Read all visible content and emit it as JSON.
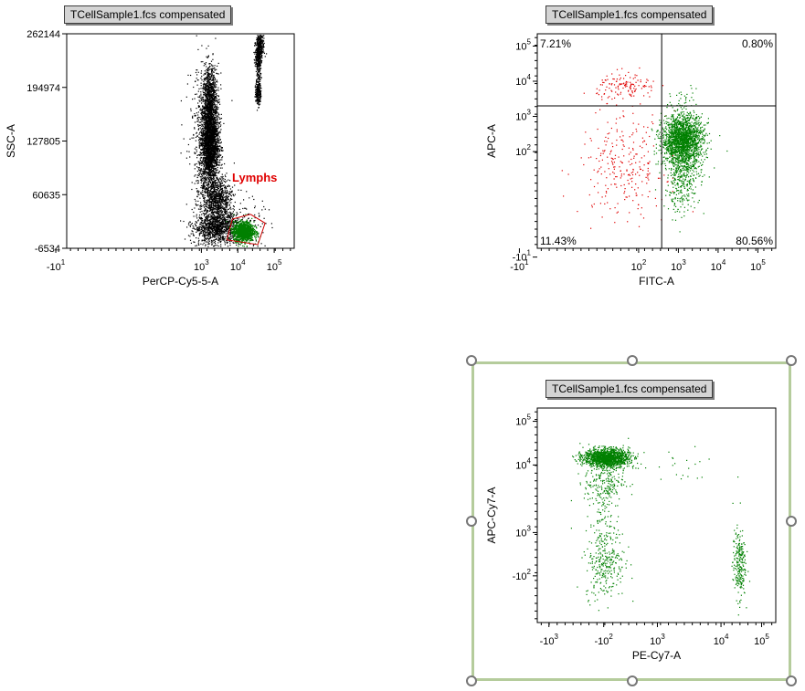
{
  "colors": {
    "axis": "#000000",
    "black_events": "#000000",
    "gated_events": "#008000",
    "gate": "#cc0000",
    "red_events": "#e00000",
    "selection": "#b5cc9c"
  },
  "chart_data": [
    {
      "id": "plot1",
      "type": "scatter",
      "title": "TCellSample1.fcs compensated",
      "xlabel": "PerCP-Cy5-5-A",
      "ylabel": "SSC-A",
      "xscale": "biex",
      "xlim": [
        -0.7,
        5.55
      ],
      "xticks": [
        {
          "pos": -1,
          "label": "-10",
          "exp": "1"
        },
        {
          "pos": 3,
          "label": "10",
          "exp": "3"
        },
        {
          "pos": 4,
          "label": "10",
          "exp": "4"
        },
        {
          "pos": 5,
          "label": "10",
          "exp": "5"
        }
      ],
      "ylim": [
        -6534,
        262144
      ],
      "yticks": [
        {
          "pos": 262144,
          "label": "262144"
        },
        {
          "pos": 194974,
          "label": "194974"
        },
        {
          "pos": 127805,
          "label": "127805"
        },
        {
          "pos": 60635,
          "label": "60635"
        },
        {
          "pos": -6534,
          "label": "-6534"
        }
      ],
      "gate": {
        "name": "Lymphs",
        "polygon": [
          [
            3.7,
            4000
          ],
          [
            4.55,
            -2000
          ],
          [
            4.75,
            25000
          ],
          [
            4.35,
            36000
          ],
          [
            3.85,
            30000
          ]
        ]
      },
      "populations": [
        {
          "color": "black",
          "n": 2600,
          "cx": 3.22,
          "cy": 128000,
          "sx": 0.12,
          "sy": 28000
        },
        {
          "color": "black",
          "n": 600,
          "cx": 3.22,
          "cy": 188000,
          "sx": 0.1,
          "sy": 18000
        },
        {
          "color": "black",
          "n": 700,
          "cx": 3.45,
          "cy": 55000,
          "sx": 0.18,
          "sy": 13000
        },
        {
          "color": "black",
          "n": 900,
          "cx": 3.4,
          "cy": 20000,
          "sx": 0.3,
          "sy": 9000
        },
        {
          "color": "black",
          "n": 700,
          "cx": 3.1,
          "cy": 95000,
          "sx": 0.22,
          "sy": 70000
        },
        {
          "color": "black",
          "n": 250,
          "cx": 3.9,
          "cy": 20000,
          "sx": 0.4,
          "sy": 20000
        },
        {
          "color": "black",
          "n": 450,
          "cx": 4.55,
          "cy": 235000,
          "sx": 0.04,
          "sy": 12000
        },
        {
          "color": "black",
          "n": 250,
          "cx": 4.55,
          "cy": 190000,
          "sx": 0.035,
          "sy": 9000
        },
        {
          "color": "black",
          "n": 200,
          "cx": 4.62,
          "cy": 250000,
          "sx": 0.05,
          "sy": 9000
        },
        {
          "color": "green",
          "n": 1300,
          "cx": 4.15,
          "cy": 15000,
          "sx": 0.14,
          "sy": 6000
        }
      ],
      "labels": [
        {
          "text": "Lymphs",
          "color": "#e00000"
        }
      ]
    },
    {
      "id": "plot2",
      "type": "scatter",
      "title": "TCellSample1.fcs compensated",
      "xlabel": "FITC-A",
      "ylabel": "APC-A",
      "xscale": "biex",
      "xlim": [
        -0.55,
        5.45
      ],
      "xticks": [
        {
          "pos": -1,
          "label": "-10",
          "exp": "1"
        },
        {
          "pos": 2,
          "label": "10",
          "exp": "2"
        },
        {
          "pos": 3,
          "label": "10",
          "exp": "3"
        },
        {
          "pos": 4,
          "label": "10",
          "exp": "4"
        },
        {
          "pos": 5,
          "label": "10",
          "exp": "5"
        }
      ],
      "yscale": "biex",
      "ylim": [
        -0.75,
        5.35
      ],
      "yticks": [
        {
          "pos": -1,
          "label": "-10",
          "exp": "1"
        },
        {
          "pos": 2,
          "label": "10",
          "exp": "2"
        },
        {
          "pos": 3,
          "label": "10",
          "exp": "3"
        },
        {
          "pos": 4,
          "label": "10",
          "exp": "4"
        },
        {
          "pos": 5,
          "label": "10",
          "exp": "5"
        }
      ],
      "quadrant_divider": {
        "x": 2.58,
        "y": 3.3
      },
      "quadrants": [
        {
          "name": "UL",
          "percent": "7.21%"
        },
        {
          "name": "UR",
          "percent": "0.80%"
        },
        {
          "name": "LL",
          "percent": "11.43%"
        },
        {
          "name": "LR",
          "percent": "80.56%"
        }
      ],
      "populations": [
        {
          "color": "red",
          "n": 130,
          "cx": 1.7,
          "cy": 3.85,
          "sx": 0.38,
          "sy": 0.2
        },
        {
          "color": "red",
          "n": 260,
          "cx": 1.6,
          "cy": 1.6,
          "sx": 0.55,
          "sy": 0.75
        },
        {
          "color": "green",
          "n": 1700,
          "cx": 3.1,
          "cy": 2.35,
          "sx": 0.26,
          "sy": 0.35
        },
        {
          "color": "green",
          "n": 500,
          "cx": 3.1,
          "cy": 1.5,
          "sx": 0.22,
          "sy": 0.6
        },
        {
          "color": "green",
          "n": 25,
          "cx": 3.05,
          "cy": 3.55,
          "sx": 0.2,
          "sy": 0.15
        }
      ]
    },
    {
      "id": "plot3",
      "type": "scatter",
      "title": "TCellSample1.fcs compensated",
      "xlabel": "PE-Cy7-A",
      "ylabel": "APC-Cy7-A",
      "xscale": "biex",
      "xlim": [
        -1.4,
        5.35
      ],
      "xticks": [
        {
          "pos": -1.07,
          "label": "-10",
          "exp": "3"
        },
        {
          "pos": 0.48,
          "label": "-10",
          "exp": "2"
        },
        {
          "pos": 2,
          "label": "10",
          "exp": "3"
        },
        {
          "pos": 3.8,
          "label": "10",
          "exp": "4"
        },
        {
          "pos": 4.95,
          "label": "10",
          "exp": "5"
        }
      ],
      "yscale": "biex",
      "ylim": [
        -0.35,
        5.3
      ],
      "yticks": [
        {
          "pos": 0.88,
          "label": "-10",
          "exp": "2"
        },
        {
          "pos": 2.02,
          "label": "10",
          "exp": "3"
        },
        {
          "pos": 3.8,
          "label": "10",
          "exp": "4"
        },
        {
          "pos": 4.95,
          "label": "10",
          "exp": "5"
        }
      ],
      "populations": [
        {
          "color": "green",
          "n": 1400,
          "cx": 0.55,
          "cy": 4.0,
          "sx": 0.32,
          "sy": 0.12
        },
        {
          "color": "green",
          "n": 220,
          "cx": 0.48,
          "cy": 3.4,
          "sx": 0.28,
          "sy": 0.35
        },
        {
          "color": "green",
          "n": 260,
          "cx": 0.5,
          "cy": 1.2,
          "sx": 0.28,
          "sy": 0.45
        },
        {
          "color": "green",
          "n": 100,
          "cx": 0.5,
          "cy": 2.3,
          "sx": 0.2,
          "sy": 0.5
        },
        {
          "color": "green",
          "n": 230,
          "cx": 4.3,
          "cy": 1.2,
          "sx": 0.09,
          "sy": 0.45
        },
        {
          "color": "green",
          "n": 25,
          "cx": 2.6,
          "cy": 3.7,
          "sx": 0.7,
          "sy": 0.25
        }
      ]
    }
  ]
}
